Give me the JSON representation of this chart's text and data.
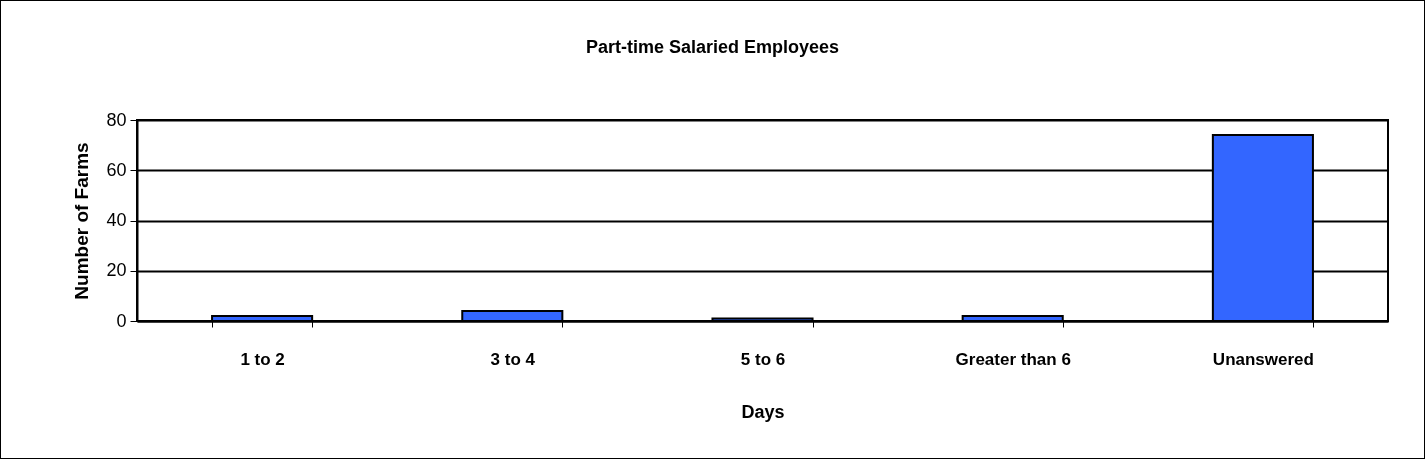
{
  "chart_data": {
    "type": "bar",
    "title": "Part-time Salaried Employees",
    "xlabel": "Days",
    "ylabel": "Number of Farms",
    "categories": [
      "1 to 2",
      "3 to 4",
      "5 to 6",
      "Greater than 6",
      "Unanswered"
    ],
    "values": [
      2,
      4,
      1,
      2,
      74
    ],
    "color": "#3366ff",
    "ylim": [
      0,
      80
    ],
    "yticks": [
      0,
      20,
      40,
      60,
      80
    ],
    "grid": "y"
  }
}
